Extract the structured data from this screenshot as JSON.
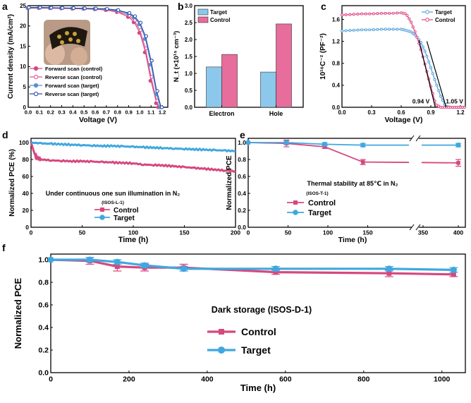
{
  "chart_data": [
    {
      "panel": "a",
      "type": "line",
      "xlabel": "Voltage (V)",
      "ylabel": "Current density (mA/cm²)",
      "xlim": [
        0.0,
        1.25
      ],
      "ylim": [
        0,
        25
      ],
      "x_ticks": [
        "0.0",
        "0.1",
        "0.2",
        "0.3",
        "0.4",
        "0.5",
        "0.6",
        "0.7",
        "0.8",
        "0.9",
        "1.0",
        "1.1",
        "1.2"
      ],
      "y_ticks": [
        "0",
        "5",
        "10",
        "15",
        "20",
        "25"
      ],
      "inset_photo": true,
      "legend_position": "bottom-center",
      "series": [
        {
          "name": "Forward scan (control)",
          "color": "#d6487e",
          "marker": "circle-filled",
          "x": [
            0.0,
            0.1,
            0.2,
            0.3,
            0.4,
            0.5,
            0.6,
            0.7,
            0.8,
            0.9,
            0.95,
            1.0,
            1.05,
            1.1,
            1.15,
            1.17
          ],
          "y": [
            24.4,
            24.4,
            24.35,
            24.3,
            24.25,
            24.2,
            24.1,
            23.9,
            23.4,
            22.2,
            20.9,
            18.3,
            13.5,
            6.5,
            1.0,
            0
          ]
        },
        {
          "name": "Reverse scan (control)",
          "color": "#e05a94",
          "marker": "circle-open",
          "x": [
            0.0,
            0.1,
            0.2,
            0.3,
            0.4,
            0.5,
            0.6,
            0.7,
            0.8,
            0.9,
            0.95,
            1.0,
            1.05,
            1.1,
            1.15,
            1.175
          ],
          "y": [
            24.5,
            24.5,
            24.45,
            24.4,
            24.35,
            24.3,
            24.2,
            24.05,
            23.6,
            22.6,
            21.4,
            19.0,
            14.5,
            7.5,
            1.6,
            0
          ]
        },
        {
          "name": "Forward scan (target)",
          "color": "#5b8fd6",
          "marker": "circle-filled",
          "x": [
            0.0,
            0.1,
            0.2,
            0.3,
            0.4,
            0.5,
            0.6,
            0.7,
            0.8,
            0.9,
            0.95,
            1.0,
            1.05,
            1.1,
            1.15,
            1.185
          ],
          "y": [
            24.5,
            24.5,
            24.45,
            24.4,
            24.35,
            24.3,
            24.25,
            24.1,
            23.8,
            23.0,
            22.1,
            20.4,
            16.8,
            10.5,
            3.2,
            0
          ]
        },
        {
          "name": "Reverse scan (target)",
          "color": "#2e4fa8",
          "marker": "circle-open",
          "x": [
            0.0,
            0.1,
            0.2,
            0.3,
            0.4,
            0.5,
            0.6,
            0.7,
            0.8,
            0.9,
            0.95,
            1.0,
            1.05,
            1.1,
            1.15,
            1.19
          ],
          "y": [
            24.55,
            24.55,
            24.5,
            24.45,
            24.4,
            24.35,
            24.3,
            24.2,
            23.9,
            23.2,
            22.4,
            20.8,
            17.5,
            11.5,
            4.0,
            0
          ]
        }
      ]
    },
    {
      "panel": "b",
      "type": "bar",
      "categories": [
        "Electron",
        "Hole"
      ],
      "ylabel": "N_t (×10¹⁵ cm⁻³)",
      "ylim": [
        0,
        3.0
      ],
      "y_ticks": [
        "0.0",
        "0.5",
        "1.0",
        "1.5",
        "2.0",
        "2.5",
        "3.0"
      ],
      "legend_position": "top-left",
      "series": [
        {
          "name": "Target",
          "color": "#8cc8ec",
          "values": [
            1.19,
            1.04
          ]
        },
        {
          "name": "Control",
          "color": "#e66d9c",
          "values": [
            1.56,
            2.46
          ]
        }
      ]
    },
    {
      "panel": "c",
      "type": "line",
      "xlabel": "Voltage (V)",
      "ylabel": "10¹⁶C⁻² (PF⁻²)",
      "xlim": [
        0.0,
        1.25
      ],
      "ylim": [
        0,
        1.85
      ],
      "x_ticks": [
        "0.0",
        "0.3",
        "0.6",
        "0.9",
        "1.2"
      ],
      "y_ticks": [
        "0.0",
        "0.4",
        "0.8",
        "1.2",
        "1.6"
      ],
      "annotations": [
        "0.94 V",
        "1.05 V"
      ],
      "legend_position": "top-right",
      "series": [
        {
          "name": "Target",
          "color": "#5fa8de",
          "x": [
            0.0,
            0.1,
            0.2,
            0.3,
            0.4,
            0.5,
            0.6,
            0.65,
            0.7,
            0.75,
            0.8,
            0.85,
            0.9,
            0.95,
            1.0,
            1.05,
            1.1,
            1.15,
            1.2,
            1.25
          ],
          "y": [
            1.39,
            1.4,
            1.41,
            1.41,
            1.42,
            1.42,
            1.42,
            1.4,
            1.37,
            1.3,
            1.18,
            0.98,
            0.72,
            0.45,
            0.2,
            0.02,
            0.0,
            0.0,
            0.0,
            0.0
          ]
        },
        {
          "name": "Control",
          "color": "#e0508b",
          "x": [
            0.0,
            0.1,
            0.2,
            0.3,
            0.4,
            0.5,
            0.6,
            0.65,
            0.7,
            0.75,
            0.8,
            0.85,
            0.9,
            0.95,
            1.0,
            1.05,
            1.1,
            1.15,
            1.2,
            1.25
          ],
          "y": [
            1.68,
            1.69,
            1.7,
            1.7,
            1.71,
            1.71,
            1.72,
            1.7,
            1.55,
            1.33,
            1.05,
            0.72,
            0.38,
            0.05,
            0.0,
            0.0,
            0.0,
            0.0,
            0.0,
            0.0
          ]
        }
      ]
    },
    {
      "panel": "d",
      "type": "line",
      "title": "Under continuous one sun illumination in N₂",
      "subtitle": "(ISOS-L-1)",
      "xlabel": "Time (h)",
      "ylabel": "Normalized PCE (%)",
      "xlim": [
        0,
        200
      ],
      "ylim": [
        0,
        105
      ],
      "x_ticks": [
        "0",
        "50",
        "100",
        "150",
        "200"
      ],
      "y_ticks": [
        "0",
        "20",
        "40",
        "60",
        "80",
        "100"
      ],
      "legend_position": "bottom-center",
      "series": [
        {
          "name": "Control",
          "color": "#d6487e",
          "x": [
            0,
            2,
            4,
            6,
            10,
            20,
            30,
            40,
            50,
            60,
            70,
            80,
            90,
            100,
            110,
            120,
            130,
            140,
            150,
            160,
            170,
            180,
            190,
            200
          ],
          "y": [
            100,
            92,
            85,
            82,
            80,
            79,
            78.5,
            78,
            78,
            77.5,
            77,
            76.5,
            76,
            75.5,
            74,
            73.5,
            73,
            72,
            71,
            70,
            69,
            68,
            67,
            66
          ]
        },
        {
          "name": "Target",
          "color": "#3fa8e0",
          "x": [
            0,
            10,
            20,
            30,
            40,
            50,
            60,
            70,
            80,
            90,
            100,
            110,
            120,
            130,
            140,
            150,
            160,
            170,
            180,
            190,
            200
          ],
          "y": [
            100,
            99,
            98.5,
            98,
            97.5,
            97,
            96.5,
            96,
            96,
            95.5,
            95,
            94.5,
            94,
            93.5,
            93,
            92.5,
            92,
            91.5,
            91,
            90.5,
            90
          ]
        }
      ]
    },
    {
      "panel": "e",
      "type": "line",
      "title": "Thermal stability at 85℃ in N₂",
      "subtitle": "(ISOS-T-1)",
      "xlabel": "Time (h)",
      "ylabel": "Normalized PCE",
      "ylim": [
        0,
        1.05
      ],
      "x_ticks": [
        "0",
        "50",
        "100",
        "150",
        "350",
        "400"
      ],
      "y_ticks": [
        "0.0",
        "0.2",
        "0.4",
        "0.6",
        "0.8",
        "1.0"
      ],
      "axis_break": [
        200,
        350
      ],
      "legend_position": "bottom-center",
      "series": [
        {
          "name": "Control",
          "color": "#d6487e",
          "x": [
            0,
            48,
            96,
            144,
            400
          ],
          "y": [
            1.0,
            0.99,
            0.95,
            0.77,
            0.76
          ],
          "err": [
            0.0,
            0.04,
            0.02,
            0.03,
            0.04
          ]
        },
        {
          "name": "Target",
          "color": "#3fa8e0",
          "x": [
            0,
            48,
            96,
            144,
            400
          ],
          "y": [
            1.0,
            1.0,
            0.98,
            0.97,
            0.97
          ],
          "err": [
            0.0,
            0.02,
            0.02,
            0.02,
            0.02
          ]
        }
      ]
    },
    {
      "panel": "f",
      "type": "line",
      "title": "Dark storage (ISOS-D-1)",
      "xlabel": "Time (h)",
      "ylabel": "Normalized PCE",
      "xlim": [
        0,
        1060
      ],
      "ylim": [
        0,
        1.05
      ],
      "x_ticks": [
        "0",
        "200",
        "400",
        "600",
        "800",
        "1000"
      ],
      "y_ticks": [
        "0.0",
        "0.2",
        "0.4",
        "0.6",
        "0.8",
        "1.0"
      ],
      "legend_position": "center",
      "series": [
        {
          "name": "Control",
          "color": "#d6487e",
          "x": [
            0,
            100,
            170,
            240,
            340,
            575,
            865,
            1030
          ],
          "y": [
            1.0,
            0.99,
            0.94,
            0.93,
            0.93,
            0.89,
            0.88,
            0.87
          ],
          "err": [
            0.0,
            0.03,
            0.04,
            0.03,
            0.03,
            0.02,
            0.03,
            0.02
          ]
        },
        {
          "name": "Target",
          "color": "#3fa8e0",
          "x": [
            0,
            100,
            170,
            240,
            340,
            575,
            865,
            1030
          ],
          "y": [
            1.0,
            1.0,
            0.98,
            0.95,
            0.92,
            0.92,
            0.92,
            0.91
          ],
          "err": [
            0.0,
            0.02,
            0.02,
            0.02,
            0.02,
            0.02,
            0.02,
            0.02
          ]
        }
      ]
    }
  ]
}
